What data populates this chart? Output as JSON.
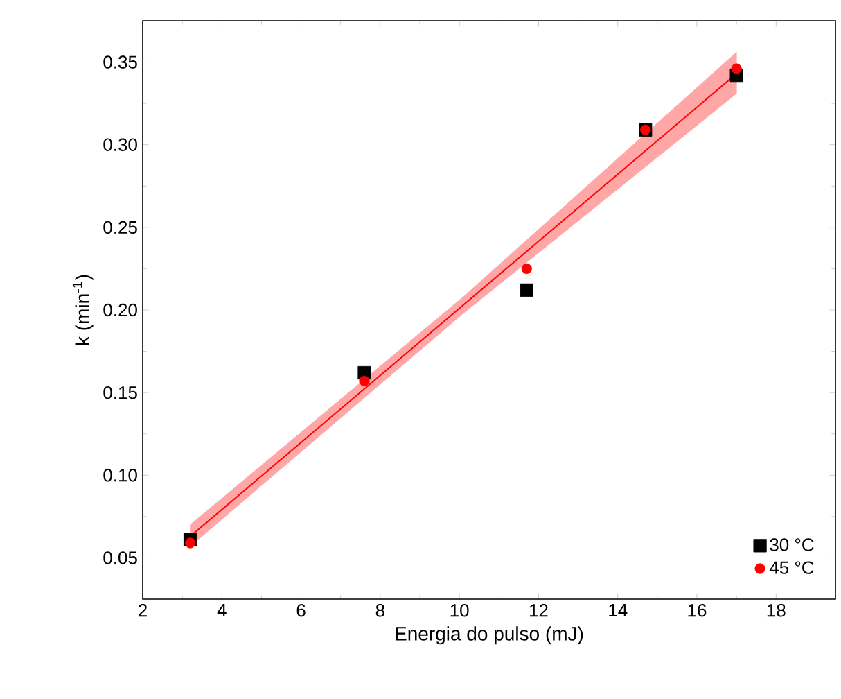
{
  "chart_data": {
    "type": "scatter",
    "xlabel": "Energia do pulso (mJ)",
    "ylabel": "k (min$^{-1}$)",
    "xlim": [
      2,
      19.5
    ],
    "ylim": [
      0.025,
      0.375
    ],
    "xticks": [
      2,
      4,
      6,
      8,
      10,
      12,
      14,
      16,
      18
    ],
    "yticks": [
      {
        "value": 0.05,
        "label": "0.05"
      },
      {
        "value": 0.1,
        "label": "0.10"
      },
      {
        "value": 0.15,
        "label": "0.15"
      },
      {
        "value": 0.2,
        "label": "0.20"
      },
      {
        "value": 0.25,
        "label": "0.25"
      },
      {
        "value": 0.3,
        "label": "0.30"
      },
      {
        "value": 0.35,
        "label": "0.35"
      }
    ],
    "legend": "bottom right",
    "grid": false,
    "series": [
      {
        "name": "30 °C",
        "color": "#000000",
        "marker": "square",
        "x": [
          3.2,
          7.6,
          11.7,
          14.7,
          17
        ],
        "values": [
          0.061,
          0.162,
          0.212,
          0.309,
          0.342
        ]
      },
      {
        "name": "45 °C",
        "color": "#ff0000",
        "marker": "circle",
        "x": [
          3.2,
          7.6,
          11.7,
          14.7,
          17
        ],
        "values": [
          0.059,
          0.157,
          0.225,
          0.309,
          0.346
        ]
      },
      {
        "type": "line",
        "color": "#ff0000",
        "x": [
          3.2,
          10.1,
          17
        ],
        "values": [
          0.063,
          0.203,
          0.343
        ],
        "lower": [
          0.057,
          0.198,
          0.331
        ],
        "upper": [
          0.07,
          0.208,
          0.356
        ]
      }
    ]
  }
}
